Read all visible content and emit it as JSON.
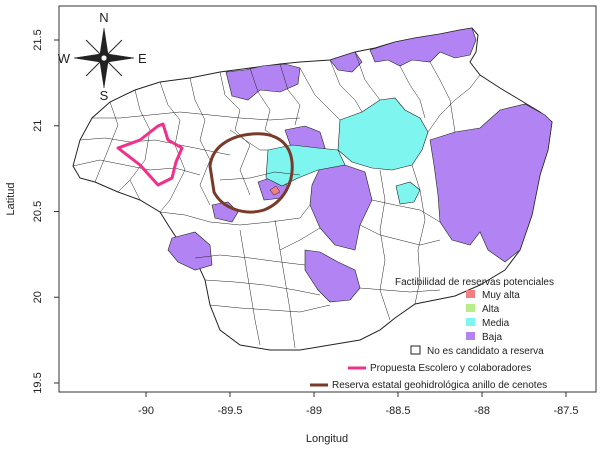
{
  "chart_data": {
    "type": "map",
    "xlabel": "Longitud",
    "ylabel": "Latitud",
    "xlim": [
      -90.5,
      -87.3
    ],
    "ylim": [
      19.45,
      21.7
    ],
    "x_ticks": [
      {
        "value": -90,
        "label": "-90"
      },
      {
        "value": -89.5,
        "label": "-89.5"
      },
      {
        "value": -89,
        "label": "-89"
      },
      {
        "value": -88.5,
        "label": "-88.5"
      },
      {
        "value": -88,
        "label": "-88"
      },
      {
        "value": -87.5,
        "label": "-87.5"
      }
    ],
    "y_ticks": [
      {
        "value": 19.5,
        "label": "19.5"
      },
      {
        "value": 20,
        "label": "20"
      },
      {
        "value": 20.5,
        "label": "20.5"
      },
      {
        "value": 21,
        "label": "21"
      },
      {
        "value": 21.5,
        "label": "21.5"
      }
    ],
    "compass": {
      "n": "N",
      "s": "S",
      "e": "E",
      "w": "W"
    },
    "legend": {
      "title": "Factibilidad de reservas potenciales",
      "placement": "bottom-right",
      "entries": [
        {
          "label": "Muy alta",
          "color": "#f28080",
          "kind": "fill"
        },
        {
          "label": "Alta",
          "color": "#b8ee8a",
          "kind": "fill"
        },
        {
          "label": "Media",
          "color": "#7ff5ef",
          "kind": "fill"
        },
        {
          "label": "Baja",
          "color": "#b283f2",
          "kind": "fill"
        },
        {
          "label": "No es candidato a reserva",
          "color": "#ffffff",
          "kind": "outline"
        },
        {
          "label": "Propuesta Escolero y colaboradores",
          "color": "#f0308a",
          "kind": "line"
        },
        {
          "label": "Reserva estatal geohidrológica anillo de cenotes",
          "color": "#7a3a2a",
          "kind": "line"
        }
      ]
    },
    "colors": {
      "baja": "#b283f2",
      "media": "#7ff5ef",
      "muy_alta": "#f28080",
      "alta": "#b8ee8a",
      "propuesta": "#f0308a",
      "anillo": "#7a3a2a"
    }
  }
}
